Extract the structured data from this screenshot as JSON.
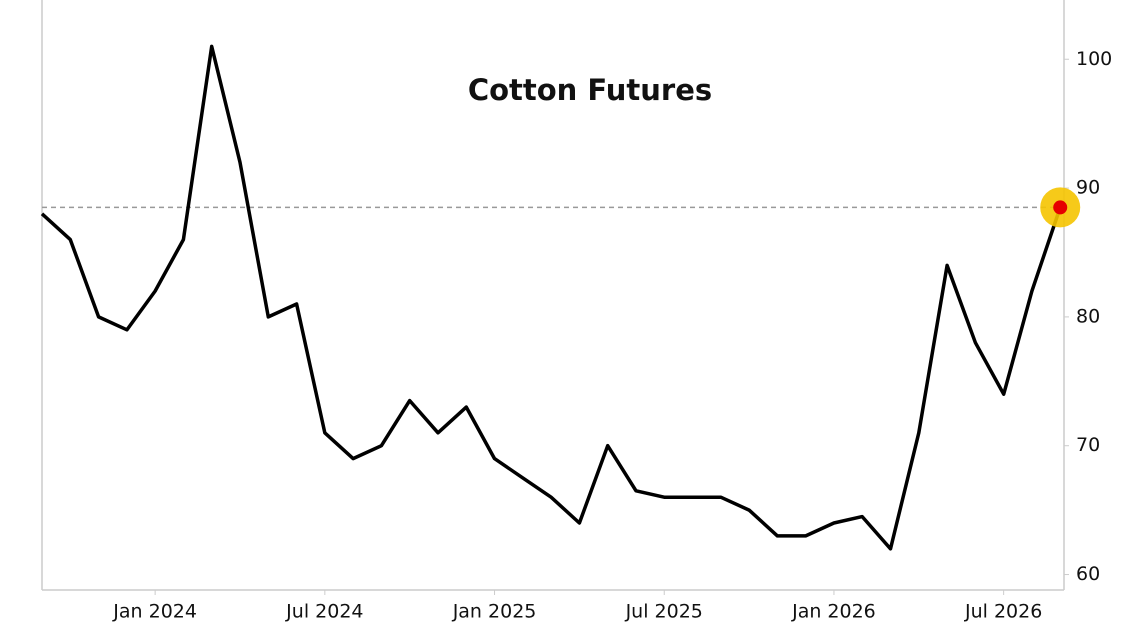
{
  "chart_data": {
    "type": "line",
    "title": "Cotton Futures",
    "x": [
      "2023-09",
      "2023-10",
      "2023-11",
      "2023-12",
      "2024-01",
      "2024-02",
      "2024-03",
      "2024-04",
      "2024-05",
      "2024-06",
      "2024-07",
      "2024-08",
      "2024-09",
      "2024-10",
      "2024-11",
      "2024-12",
      "2025-01",
      "2025-02",
      "2025-03",
      "2025-04",
      "2025-05",
      "2025-06",
      "2025-07",
      "2025-08",
      "2025-09",
      "2025-10",
      "2025-11",
      "2025-12",
      "2026-01",
      "2026-02",
      "2026-03",
      "2026-04",
      "2026-05",
      "2026-06",
      "2026-07",
      "2026-08",
      "2026-09"
    ],
    "series": [
      {
        "name": "Cotton Futures",
        "color": "#000000",
        "values": [
          88,
          86,
          80,
          79,
          82,
          86,
          101,
          92,
          80,
          81,
          71,
          69,
          70,
          73.5,
          71,
          73,
          69,
          67.5,
          66,
          64,
          70,
          66.5,
          66,
          66,
          66,
          65,
          63,
          63,
          64,
          64.5,
          62,
          71,
          84,
          78,
          74,
          82,
          88.5
        ]
      }
    ],
    "xlim": [
      "2023-09",
      "2026-09"
    ],
    "xticks": [
      {
        "value": "2024-01",
        "label": "Jan 2024"
      },
      {
        "value": "2024-07",
        "label": "Jul 2024"
      },
      {
        "value": "2025-01",
        "label": "Jan 2025"
      },
      {
        "value": "2025-07",
        "label": "Jul 2025"
      },
      {
        "value": "2026-01",
        "label": "Jan 2026"
      },
      {
        "value": "2026-07",
        "label": "Jul 2026"
      }
    ],
    "ylim": [
      58.8,
      104.6
    ],
    "yticks": [
      60,
      70,
      80,
      90,
      100
    ],
    "y_axis_side": "right",
    "reference_line": 88.5,
    "highlight_last": true
  }
}
